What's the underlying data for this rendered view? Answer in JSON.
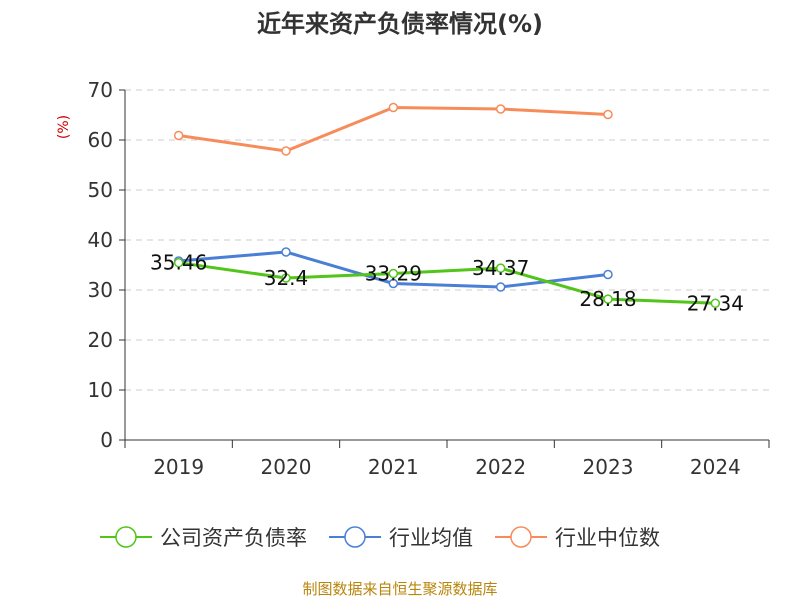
{
  "chart_data": {
    "type": "line",
    "title": "近年来资产负债率情况(%)",
    "ylabel": "(%)",
    "categories": [
      "2019",
      "2020",
      "2021",
      "2022",
      "2023",
      "2024"
    ],
    "ylim": [
      0,
      70
    ],
    "yticks": [
      0,
      10,
      20,
      30,
      40,
      50,
      60,
      70
    ],
    "grid": true,
    "legend_position": "bottom",
    "series": [
      {
        "name": "公司资产负债率",
        "color": "#52c41a",
        "values": [
          35.46,
          32.4,
          33.29,
          34.37,
          28.18,
          27.34
        ],
        "data_labels": [
          "35.46",
          "32.4",
          "33.29",
          "34.37",
          "28.18",
          "27.34"
        ]
      },
      {
        "name": "行业均值",
        "color": "#4a7fd6",
        "values": [
          35.8,
          37.6,
          31.3,
          30.6,
          33.1,
          null
        ]
      },
      {
        "name": "行业中位数",
        "color": "#f78c5a",
        "values": [
          60.9,
          57.8,
          66.5,
          66.2,
          65.1,
          null
        ]
      }
    ]
  },
  "source": "制图数据来自恒生聚源数据库"
}
